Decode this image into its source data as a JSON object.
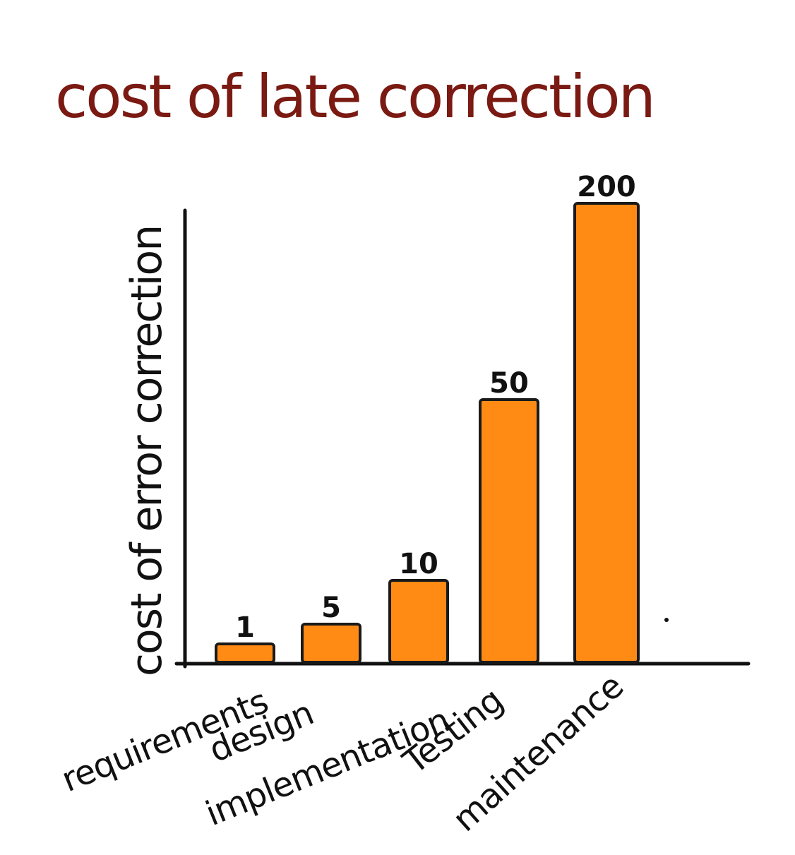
{
  "chart_data": {
    "type": "bar",
    "title": "cost of late correction",
    "xlabel": "",
    "ylabel": "cost of error correction",
    "categories": [
      "requirements",
      "design",
      "implementation",
      "Testing",
      "maintenance"
    ],
    "values": [
      1,
      5,
      10,
      50,
      200
    ],
    "value_labels": [
      "1",
      "5",
      "10",
      "50",
      "200"
    ],
    "grid": false,
    "legend": "none"
  },
  "colors": {
    "bar_fill": "#ff8a14",
    "bar_stroke": "#1a1a1a",
    "title": "#7a1a12",
    "axis": "#111111",
    "text": "#111111"
  }
}
